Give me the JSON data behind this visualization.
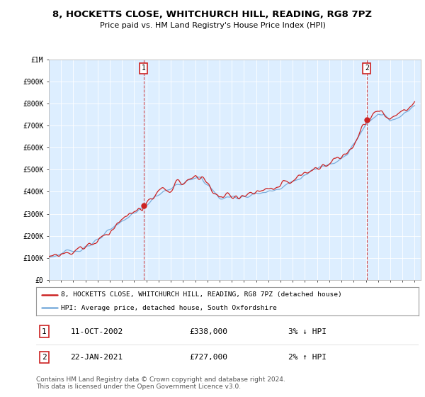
{
  "title": "8, HOCKETTS CLOSE, WHITCHURCH HILL, READING, RG8 7PZ",
  "subtitle": "Price paid vs. HM Land Registry's House Price Index (HPI)",
  "ylim": [
    0,
    1000000
  ],
  "yticks": [
    0,
    100000,
    200000,
    300000,
    400000,
    500000,
    600000,
    700000,
    800000,
    900000,
    1000000
  ],
  "ytick_labels": [
    "£0",
    "£100K",
    "£200K",
    "£300K",
    "£400K",
    "£500K",
    "£600K",
    "£700K",
    "£800K",
    "£900K",
    "£1M"
  ],
  "hpi_color": "#7aaddc",
  "price_color": "#cc2222",
  "marker_color": "#cc2222",
  "bg_color": "#ffffff",
  "plot_bg_color": "#ddeeff",
  "grid_color": "#ffffff",
  "sale1_date": "11-OCT-2002",
  "sale1_price": 338000,
  "sale1_hpi_note": "3% ↓ HPI",
  "sale1_year": 2002.79,
  "sale2_date": "22-JAN-2021",
  "sale2_price": 727000,
  "sale2_hpi_note": "2% ↑ HPI",
  "sale2_year": 2021.06,
  "legend_line1": "8, HOCKETTS CLOSE, WHITCHURCH HILL, READING, RG8 7PZ (detached house)",
  "legend_line2": "HPI: Average price, detached house, South Oxfordshire",
  "footer": "Contains HM Land Registry data © Crown copyright and database right 2024.\nThis data is licensed under the Open Government Licence v3.0.",
  "title_fontsize": 9.5,
  "subtitle_fontsize": 8,
  "tick_fontsize": 7,
  "legend_fontsize": 7.5,
  "footer_fontsize": 6.5
}
